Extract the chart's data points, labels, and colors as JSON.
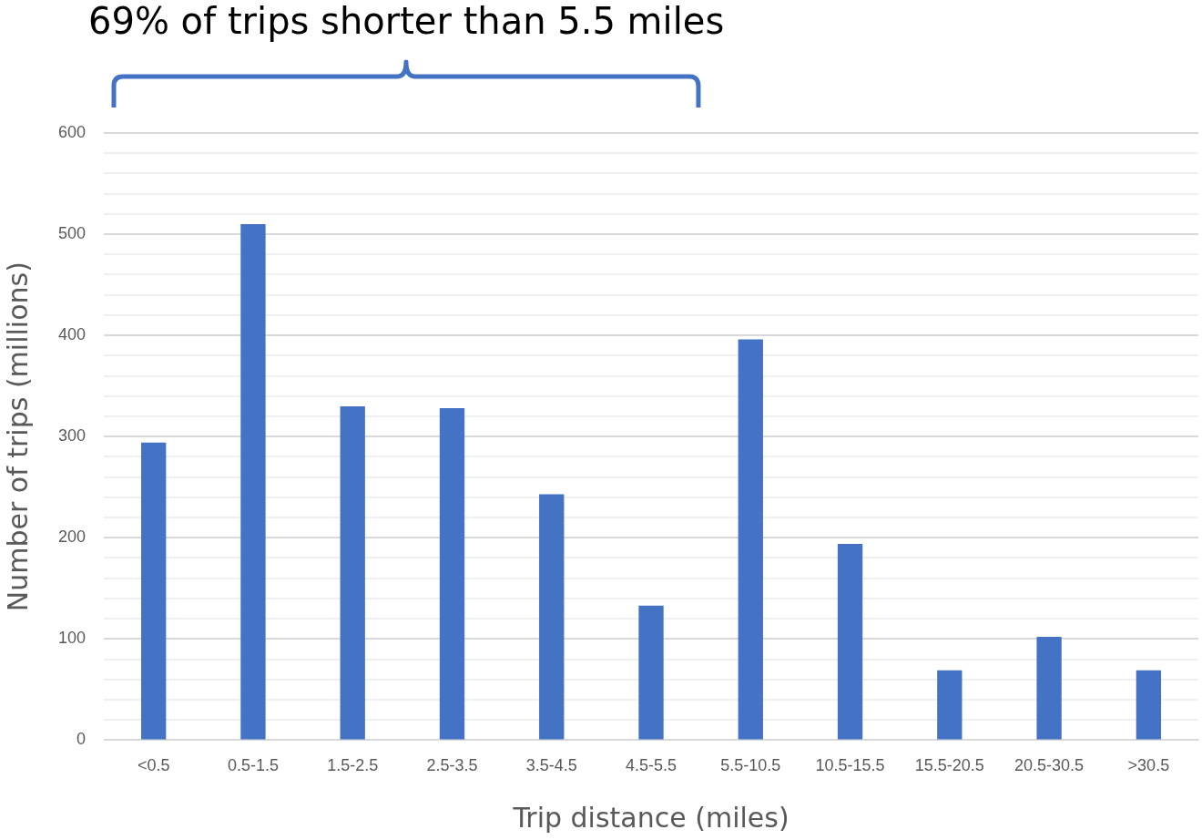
{
  "chart_data": {
    "type": "bar",
    "xlabel": "Trip distance (miles)",
    "ylabel": "Number of trips (millions)",
    "categories": [
      "<0.5",
      "0.5-1.5",
      "1.5-2.5",
      "2.5-3.5",
      "3.5-4.5",
      "4.5-5.5",
      "5.5-10.5",
      "10.5-15.5",
      "15.5-20.5",
      "20.5-30.5",
      ">30.5"
    ],
    "values": [
      294,
      510,
      330,
      328,
      243,
      133,
      396,
      194,
      69,
      102,
      69
    ],
    "color": "#4472c4",
    "ylim": [
      0,
      600
    ],
    "yticks": [
      0,
      {
        "value": 20,
        "label": null
      },
      {
        "value": 40,
        "label": null
      },
      {
        "value": 60,
        "label": null
      },
      {
        "value": 80,
        "label": null
      },
      100,
      {
        "value": 120,
        "label": null
      },
      {
        "value": 140,
        "label": null
      },
      {
        "value": 160,
        "label": null
      },
      {
        "value": 180,
        "label": null
      },
      200,
      {
        "value": 220,
        "label": null
      },
      {
        "value": 240,
        "label": null
      },
      {
        "value": 260,
        "label": null
      },
      {
        "value": 280,
        "label": null
      },
      300,
      {
        "value": 320,
        "label": null
      },
      {
        "value": 340,
        "label": null
      },
      {
        "value": 360,
        "label": null
      },
      {
        "value": 380,
        "label": null
      },
      400,
      {
        "value": 420,
        "label": null
      },
      {
        "value": 440,
        "label": null
      },
      {
        "value": 460,
        "label": null
      },
      {
        "value": 480,
        "label": null
      },
      500,
      {
        "value": 520,
        "label": null
      },
      {
        "value": 540,
        "label": null
      },
      {
        "value": 560,
        "label": null
      },
      {
        "value": 580,
        "label": null
      },
      600
    ],
    "grid": "y",
    "annotations": [
      "69% of trips shorter than 5.5 miles"
    ]
  }
}
